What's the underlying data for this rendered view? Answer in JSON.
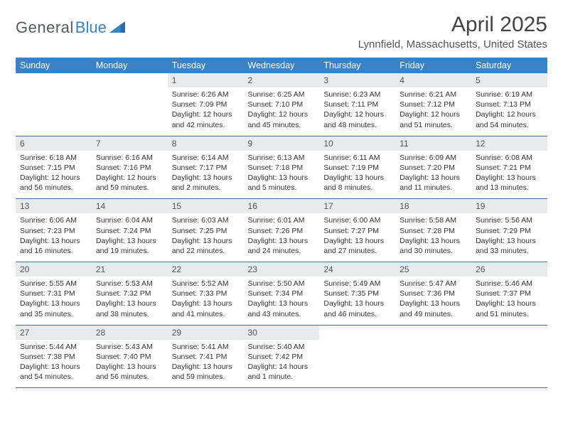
{
  "brand": {
    "name1": "General",
    "name2": "Blue"
  },
  "title": "April 2025",
  "location": "Lynnfield, Massachusetts, United States",
  "colors": {
    "header_bg": "#3b82c4",
    "header_text": "#ffffff",
    "daynum_bg": "#e9eaec",
    "rule": "#3b6fa0",
    "text": "#333333",
    "brand_gray": "#555a60",
    "brand_blue": "#3b82c4"
  },
  "font": {
    "body_size_pt": 8,
    "title_size_pt": 24,
    "location_size_pt": 12,
    "header_size_pt": 10
  },
  "days_of_week": [
    "Sunday",
    "Monday",
    "Tuesday",
    "Wednesday",
    "Thursday",
    "Friday",
    "Saturday"
  ],
  "leading_blanks": 2,
  "days": [
    {
      "n": 1,
      "sunrise": "6:26 AM",
      "sunset": "7:09 PM",
      "daylight": "12 hours and 42 minutes."
    },
    {
      "n": 2,
      "sunrise": "6:25 AM",
      "sunset": "7:10 PM",
      "daylight": "12 hours and 45 minutes."
    },
    {
      "n": 3,
      "sunrise": "6:23 AM",
      "sunset": "7:11 PM",
      "daylight": "12 hours and 48 minutes."
    },
    {
      "n": 4,
      "sunrise": "6:21 AM",
      "sunset": "7:12 PM",
      "daylight": "12 hours and 51 minutes."
    },
    {
      "n": 5,
      "sunrise": "6:19 AM",
      "sunset": "7:13 PM",
      "daylight": "12 hours and 54 minutes."
    },
    {
      "n": 6,
      "sunrise": "6:18 AM",
      "sunset": "7:15 PM",
      "daylight": "12 hours and 56 minutes."
    },
    {
      "n": 7,
      "sunrise": "6:16 AM",
      "sunset": "7:16 PM",
      "daylight": "12 hours and 59 minutes."
    },
    {
      "n": 8,
      "sunrise": "6:14 AM",
      "sunset": "7:17 PM",
      "daylight": "13 hours and 2 minutes."
    },
    {
      "n": 9,
      "sunrise": "6:13 AM",
      "sunset": "7:18 PM",
      "daylight": "13 hours and 5 minutes."
    },
    {
      "n": 10,
      "sunrise": "6:11 AM",
      "sunset": "7:19 PM",
      "daylight": "13 hours and 8 minutes."
    },
    {
      "n": 11,
      "sunrise": "6:09 AM",
      "sunset": "7:20 PM",
      "daylight": "13 hours and 11 minutes."
    },
    {
      "n": 12,
      "sunrise": "6:08 AM",
      "sunset": "7:21 PM",
      "daylight": "13 hours and 13 minutes."
    },
    {
      "n": 13,
      "sunrise": "6:06 AM",
      "sunset": "7:23 PM",
      "daylight": "13 hours and 16 minutes."
    },
    {
      "n": 14,
      "sunrise": "6:04 AM",
      "sunset": "7:24 PM",
      "daylight": "13 hours and 19 minutes."
    },
    {
      "n": 15,
      "sunrise": "6:03 AM",
      "sunset": "7:25 PM",
      "daylight": "13 hours and 22 minutes."
    },
    {
      "n": 16,
      "sunrise": "6:01 AM",
      "sunset": "7:26 PM",
      "daylight": "13 hours and 24 minutes."
    },
    {
      "n": 17,
      "sunrise": "6:00 AM",
      "sunset": "7:27 PM",
      "daylight": "13 hours and 27 minutes."
    },
    {
      "n": 18,
      "sunrise": "5:58 AM",
      "sunset": "7:28 PM",
      "daylight": "13 hours and 30 minutes."
    },
    {
      "n": 19,
      "sunrise": "5:56 AM",
      "sunset": "7:29 PM",
      "daylight": "13 hours and 33 minutes."
    },
    {
      "n": 20,
      "sunrise": "5:55 AM",
      "sunset": "7:31 PM",
      "daylight": "13 hours and 35 minutes."
    },
    {
      "n": 21,
      "sunrise": "5:53 AM",
      "sunset": "7:32 PM",
      "daylight": "13 hours and 38 minutes."
    },
    {
      "n": 22,
      "sunrise": "5:52 AM",
      "sunset": "7:33 PM",
      "daylight": "13 hours and 41 minutes."
    },
    {
      "n": 23,
      "sunrise": "5:50 AM",
      "sunset": "7:34 PM",
      "daylight": "13 hours and 43 minutes."
    },
    {
      "n": 24,
      "sunrise": "5:49 AM",
      "sunset": "7:35 PM",
      "daylight": "13 hours and 46 minutes."
    },
    {
      "n": 25,
      "sunrise": "5:47 AM",
      "sunset": "7:36 PM",
      "daylight": "13 hours and 49 minutes."
    },
    {
      "n": 26,
      "sunrise": "5:46 AM",
      "sunset": "7:37 PM",
      "daylight": "13 hours and 51 minutes."
    },
    {
      "n": 27,
      "sunrise": "5:44 AM",
      "sunset": "7:38 PM",
      "daylight": "13 hours and 54 minutes."
    },
    {
      "n": 28,
      "sunrise": "5:43 AM",
      "sunset": "7:40 PM",
      "daylight": "13 hours and 56 minutes."
    },
    {
      "n": 29,
      "sunrise": "5:41 AM",
      "sunset": "7:41 PM",
      "daylight": "13 hours and 59 minutes."
    },
    {
      "n": 30,
      "sunrise": "5:40 AM",
      "sunset": "7:42 PM",
      "daylight": "14 hours and 1 minute."
    }
  ],
  "labels": {
    "sunrise": "Sunrise:",
    "sunset": "Sunset:",
    "daylight": "Daylight:"
  }
}
